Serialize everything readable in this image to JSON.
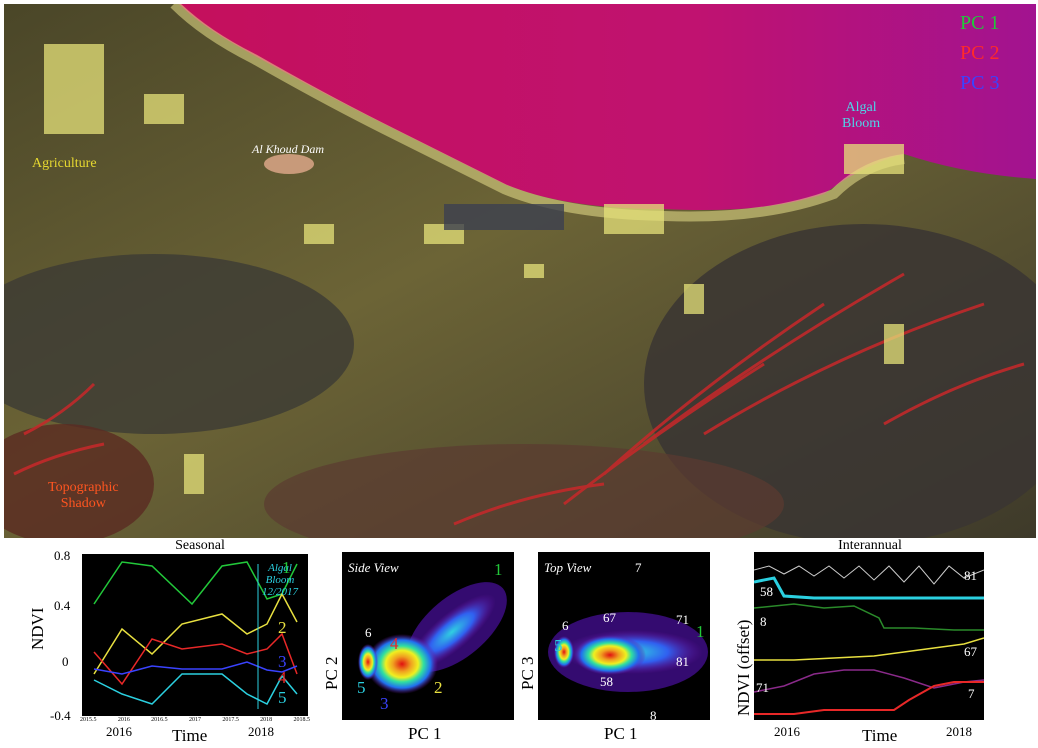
{
  "map": {
    "legend": [
      {
        "label": "PC 1",
        "color": "#22c83a"
      },
      {
        "label": "PC 2",
        "color": "#ff2a2a"
      },
      {
        "label": "PC 3",
        "color": "#3a43ff"
      }
    ],
    "labels": {
      "agriculture": "Agriculture",
      "dam": "Al Khoud Dam",
      "algal_line1": "Algal",
      "algal_line2": "Bloom",
      "topo_line1": "Topographic",
      "topo_line2": "Shadow"
    }
  },
  "seasonal": {
    "title": "Seasonal",
    "ylabel": "NDVI",
    "xlabel": "Time",
    "yticks": [
      "0.8",
      "0.4",
      "0",
      "-0.4"
    ],
    "xticks_small": [
      "2015.5",
      "2016",
      "2016.5",
      "2017",
      "2017.5",
      "2018",
      "2018.5"
    ],
    "xticks_big": [
      "2016",
      "2018"
    ],
    "algal_note": [
      "Algal",
      "Bloom",
      "12/2017"
    ],
    "series_labels": [
      "1",
      "2",
      "3",
      "4",
      "5"
    ]
  },
  "side_view": {
    "title": "Side View",
    "ylabel": "PC 2",
    "xlabel": "PC 1",
    "labels": [
      "1",
      "2",
      "3",
      "4",
      "5",
      "6"
    ]
  },
  "top_view": {
    "title": "Top View",
    "ylabel": "PC 3",
    "xlabel": "PC 1",
    "labels": [
      "1",
      "5",
      "6",
      "7",
      "8",
      "58",
      "67",
      "71",
      "81"
    ]
  },
  "interannual": {
    "title": "Interannual",
    "ylabel": "NDVI (offset)",
    "xlabel": "Time",
    "xticks": [
      "2016",
      "2018"
    ],
    "series_labels": [
      "81",
      "58",
      "8",
      "67",
      "71",
      "7"
    ]
  }
}
